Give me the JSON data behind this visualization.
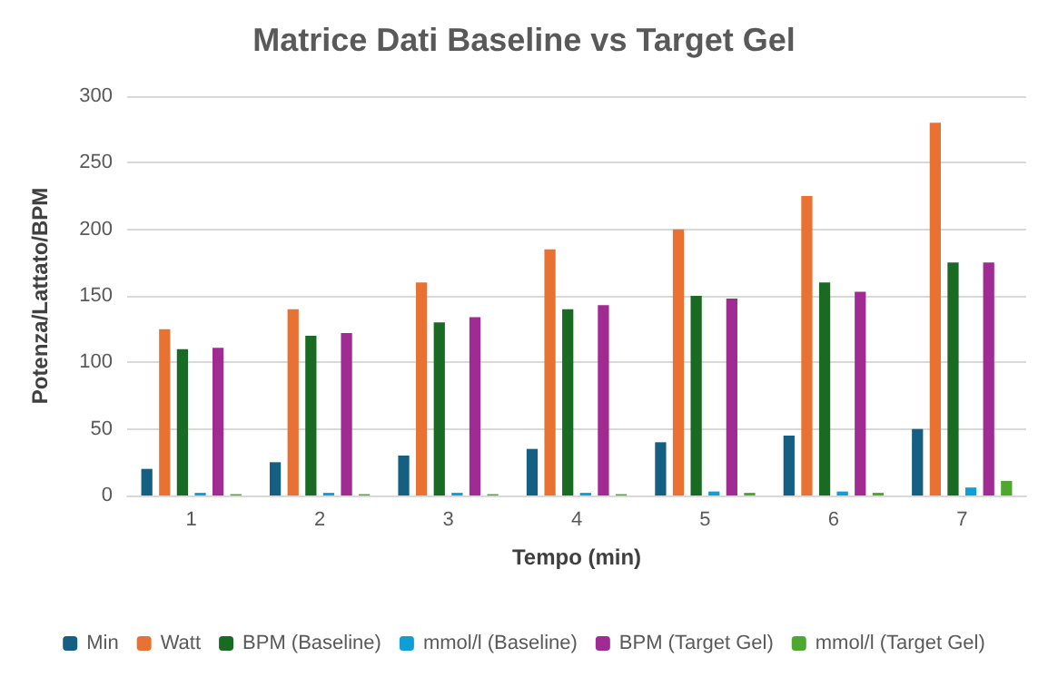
{
  "chart_data": {
    "type": "bar",
    "title": "Matrice Dati Baseline vs Target Gel",
    "xlabel": "Tempo (min)",
    "ylabel": "Potenza/Lattato/BPM",
    "categories": [
      "1",
      "2",
      "3",
      "4",
      "5",
      "6",
      "7"
    ],
    "series": [
      {
        "name": "Min",
        "color": "#156082",
        "values": [
          20,
          25,
          30,
          35,
          40,
          45,
          50
        ]
      },
      {
        "name": "Watt",
        "color": "#e97132",
        "values": [
          125,
          140,
          160,
          185,
          200,
          225,
          280
        ]
      },
      {
        "name": "BPM (Baseline)",
        "color": "#196b24",
        "values": [
          110,
          120,
          130,
          140,
          150,
          160,
          175
        ]
      },
      {
        "name": "mmol/l (Baseline)",
        "color": "#0f9ed5",
        "values": [
          2,
          2,
          2,
          2,
          3,
          3,
          6
        ]
      },
      {
        "name": "BPM (Target Gel)",
        "color": "#a02b93",
        "values": [
          111,
          122,
          134,
          143,
          148,
          153,
          175
        ]
      },
      {
        "name": "mmol/l (Target Gel)",
        "color": "#4ea72e",
        "values": [
          1,
          1,
          1,
          1,
          2,
          2,
          11
        ]
      }
    ],
    "ylim": [
      0,
      300
    ],
    "yticks": [
      0,
      50,
      100,
      150,
      200,
      250,
      300
    ],
    "grid": "y",
    "legend": "bottom"
  }
}
